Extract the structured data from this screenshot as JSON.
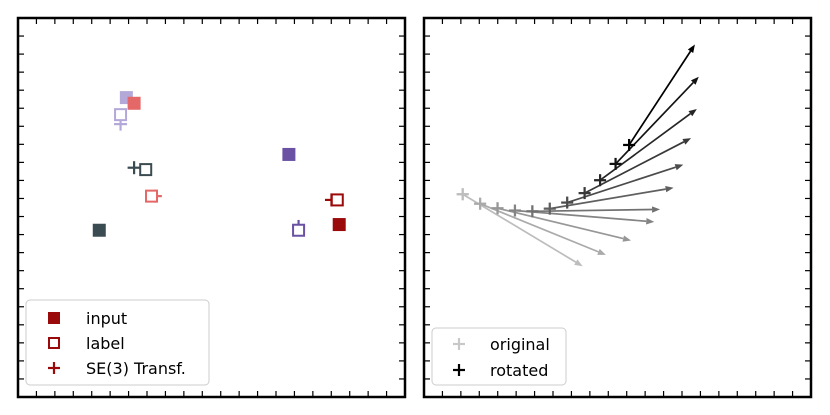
{
  "chart_data": [
    {
      "type": "scatter",
      "title": "",
      "xlabel": "",
      "ylabel": "",
      "xlim": [
        0,
        10
      ],
      "ylim": [
        0,
        10
      ],
      "grid": false,
      "tick_labels": false,
      "legend": {
        "position": "bottom-left",
        "entries": [
          "input",
          "label",
          "SE(3) Transf."
        ]
      },
      "legend_labels": {
        "input": "input",
        "label": "label",
        "transf": "SE(3) Transf."
      },
      "series": [
        {
          "name": "input",
          "marker": "filled-square",
          "points": [
            {
              "x": 2.8,
              "y": 7.9,
              "color": "#b3a8d8"
            },
            {
              "x": 3.0,
              "y": 7.75,
              "color": "#e46868"
            },
            {
              "x": 7.0,
              "y": 6.4,
              "color": "#6a51a3"
            },
            {
              "x": 2.1,
              "y": 4.4,
              "color": "#3a4b52"
            },
            {
              "x": 8.3,
              "y": 4.55,
              "color": "#9b0a0a"
            }
          ]
        },
        {
          "name": "label",
          "marker": "open-square",
          "points": [
            {
              "x": 2.65,
              "y": 7.45,
              "color": "#b3a8d8"
            },
            {
              "x": 3.3,
              "y": 6.0,
              "color": "#3a4b52"
            },
            {
              "x": 3.45,
              "y": 5.3,
              "color": "#e46868"
            },
            {
              "x": 8.25,
              "y": 5.2,
              "color": "#9b0a0a"
            },
            {
              "x": 7.25,
              "y": 4.4,
              "color": "#6a51a3"
            }
          ]
        },
        {
          "name": "SE(3) Transf.",
          "marker": "plus",
          "points": [
            {
              "x": 2.65,
              "y": 7.2,
              "color": "#b3a8d8"
            },
            {
              "x": 3.0,
              "y": 6.05,
              "color": "#3a4b52"
            },
            {
              "x": 3.55,
              "y": 5.3,
              "color": "#e46868"
            },
            {
              "x": 8.1,
              "y": 5.2,
              "color": "#9b0a0a"
            },
            {
              "x": 7.25,
              "y": 4.5,
              "color": "#6a51a3"
            }
          ]
        }
      ]
    },
    {
      "type": "scatter",
      "title": "",
      "xlabel": "",
      "ylabel": "",
      "xlim": [
        0,
        10
      ],
      "ylim": [
        0,
        10
      ],
      "grid": false,
      "tick_labels": false,
      "legend": {
        "position": "bottom-left",
        "entries": [
          "original",
          "rotated"
        ]
      },
      "legend_labels": {
        "original": "original",
        "rotated": "rotated"
      },
      "series": [
        {
          "name": "original",
          "marker": "plus",
          "color": "#c8c8c8",
          "points": [
            {
              "x": 1.0,
              "y": 5.35
            },
            {
              "x": 1.45,
              "y": 5.1
            },
            {
              "x": 1.9,
              "y": 4.98
            },
            {
              "x": 2.35,
              "y": 4.92
            },
            {
              "x": 2.8,
              "y": 4.9
            },
            {
              "x": 3.25,
              "y": 4.97
            },
            {
              "x": 3.7,
              "y": 5.13
            },
            {
              "x": 4.15,
              "y": 5.38
            },
            {
              "x": 4.55,
              "y": 5.72
            },
            {
              "x": 4.95,
              "y": 6.15
            },
            {
              "x": 5.3,
              "y": 6.65
            }
          ]
        },
        {
          "name": "rotated",
          "marker": "plus",
          "color_range": [
            "#bdbdbd",
            "#000000"
          ],
          "points": [
            {
              "x": 1.0,
              "y": 5.35,
              "dx": 3.1,
              "dy": -1.9
            },
            {
              "x": 1.45,
              "y": 5.1,
              "dx": 3.25,
              "dy": -1.35
            },
            {
              "x": 1.9,
              "y": 4.98,
              "dx": 3.45,
              "dy": -0.85
            },
            {
              "x": 2.35,
              "y": 4.92,
              "dx": 3.6,
              "dy": -0.3
            },
            {
              "x": 2.8,
              "y": 4.9,
              "dx": 3.3,
              "dy": 0.05
            },
            {
              "x": 3.25,
              "y": 4.97,
              "dx": 3.2,
              "dy": 0.55
            },
            {
              "x": 3.7,
              "y": 5.13,
              "dx": 3.0,
              "dy": 1.0
            },
            {
              "x": 4.15,
              "y": 5.38,
              "dx": 2.75,
              "dy": 1.45
            },
            {
              "x": 4.55,
              "y": 5.72,
              "dx": 2.5,
              "dy": 1.88
            },
            {
              "x": 4.95,
              "y": 6.15,
              "dx": 2.15,
              "dy": 2.3
            },
            {
              "x": 5.3,
              "y": 6.65,
              "dx": 1.7,
              "dy": 2.65
            }
          ]
        }
      ]
    }
  ]
}
